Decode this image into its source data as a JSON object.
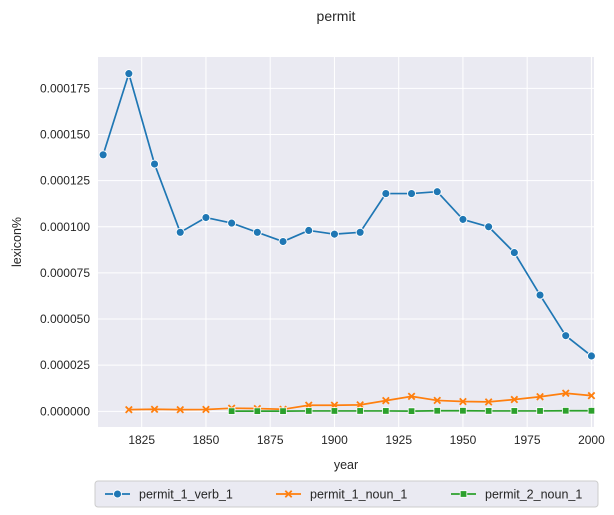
{
  "chart_data": {
    "type": "line",
    "title": "permit",
    "xlabel": "year",
    "ylabel": "lexicon%",
    "xlim": [
      1808,
      2001
    ],
    "ylim": [
      -8.5e-06,
      0.000192
    ],
    "xticks": [
      1825,
      1850,
      1875,
      1900,
      1925,
      1950,
      1975,
      2000
    ],
    "xtick_labels": [
      "1825",
      "1850",
      "1875",
      "1900",
      "1925",
      "1950",
      "1975",
      "2000"
    ],
    "yticks": [
      0,
      2.5e-05,
      5e-05,
      7.5e-05,
      0.0001,
      0.000125,
      0.00015,
      0.000175
    ],
    "ytick_labels": [
      "0.000000",
      "0.000025",
      "0.000050",
      "0.000075",
      "0.000100",
      "0.000125",
      "0.000150",
      "0.000175"
    ],
    "grid": true,
    "legend_position": "bottom-center",
    "series": [
      {
        "name": "permit_1_verb_1",
        "color": "#1f77b4",
        "marker": "circle",
        "x": [
          1810,
          1820,
          1830,
          1840,
          1850,
          1860,
          1870,
          1880,
          1890,
          1900,
          1910,
          1920,
          1930,
          1940,
          1950,
          1960,
          1970,
          1980,
          1990,
          2000
        ],
        "values": [
          0.000139,
          0.000183,
          0.000134,
          9.7e-05,
          0.000105,
          0.000102,
          9.7e-05,
          9.2e-05,
          9.8e-05,
          9.6e-05,
          9.7e-05,
          0.000118,
          0.000118,
          0.000119,
          0.000104,
          0.0001,
          8.6e-05,
          6.3e-05,
          4.1e-05,
          3e-05
        ]
      },
      {
        "name": "permit_1_noun_1",
        "color": "#ff7f0e",
        "marker": "x",
        "x": [
          1820,
          1830,
          1840,
          1850,
          1860,
          1870,
          1880,
          1890,
          1900,
          1910,
          1920,
          1930,
          1940,
          1950,
          1960,
          1970,
          1980,
          1990,
          2000
        ],
        "values": [
          9e-07,
          1.1e-06,
          9e-07,
          1e-06,
          1.7e-06,
          1.5e-06,
          1.1e-06,
          3.3e-06,
          3.3e-06,
          3.5e-06,
          5.8e-06,
          8.1e-06,
          5.9e-06,
          5.3e-06,
          5.1e-06,
          6.4e-06,
          7.9e-06,
          9.8e-06,
          8.5e-06
        ]
      },
      {
        "name": "permit_2_noun_1",
        "color": "#2ca02c",
        "marker": "square",
        "x": [
          1860,
          1870,
          1880,
          1890,
          1900,
          1910,
          1920,
          1930,
          1940,
          1950,
          1960,
          1970,
          1980,
          1990,
          2000
        ],
        "values": [
          1e-07,
          1e-07,
          1e-07,
          2e-07,
          2e-07,
          2e-07,
          2e-07,
          1e-07,
          3e-07,
          3e-07,
          2e-07,
          2e-07,
          2e-07,
          3e-07,
          3e-07
        ]
      }
    ]
  }
}
